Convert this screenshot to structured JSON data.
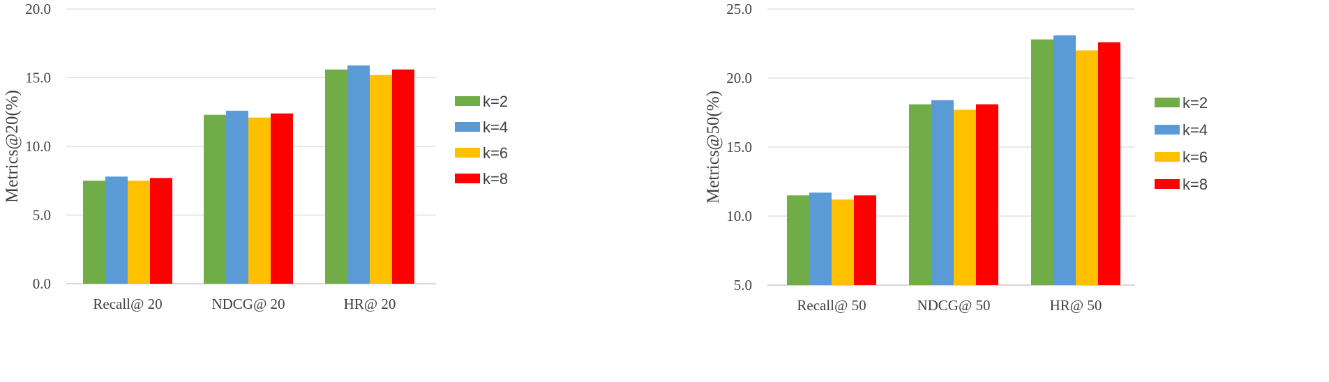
{
  "colors": {
    "series": [
      "#70ad47",
      "#5b9bd5",
      "#ffc000",
      "#ff0000"
    ],
    "grid": "#d9d9d9",
    "text": "#404040"
  },
  "chart_data": [
    {
      "type": "bar",
      "title": "",
      "xlabel": "",
      "ylabel": "Metrics@20(%)",
      "ylim": [
        0,
        20
      ],
      "yticks": [
        "0.0",
        "5.0",
        "10.0",
        "15.0",
        "20.0"
      ],
      "categories": [
        "Recall@ 20",
        "NDCG@ 20",
        "HR@ 20"
      ],
      "legend_position": "right",
      "grid": true,
      "series": [
        {
          "name": "k=2",
          "values": [
            7.5,
            12.3,
            15.6
          ]
        },
        {
          "name": "k=4",
          "values": [
            7.8,
            12.6,
            15.9
          ]
        },
        {
          "name": "k=6",
          "values": [
            7.5,
            12.1,
            15.2
          ]
        },
        {
          "name": "k=8",
          "values": [
            7.7,
            12.4,
            15.6
          ]
        }
      ]
    },
    {
      "type": "bar",
      "title": "",
      "xlabel": "",
      "ylabel": "Metrics@50(%)",
      "ylim": [
        5,
        25
      ],
      "yticks": [
        "5.0",
        "10.0",
        "15.0",
        "20.0",
        "25.0"
      ],
      "categories": [
        "Recall@ 50",
        "NDCG@ 50",
        "HR@ 50"
      ],
      "legend_position": "right",
      "grid": true,
      "series": [
        {
          "name": "k=2",
          "values": [
            11.5,
            18.1,
            22.8
          ]
        },
        {
          "name": "k=4",
          "values": [
            11.7,
            18.4,
            23.1
          ]
        },
        {
          "name": "k=6",
          "values": [
            11.2,
            17.7,
            22.0
          ]
        },
        {
          "name": "k=8",
          "values": [
            11.5,
            18.1,
            22.6
          ]
        }
      ]
    }
  ]
}
